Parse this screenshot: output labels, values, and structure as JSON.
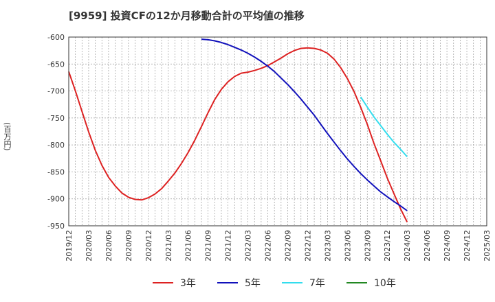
{
  "chart_data": {
    "type": "line",
    "title": "[9959]  投資CFの12か月移動合計の平均値の推移",
    "ylabel": "(百万円)",
    "xlabel": "",
    "ylim": [
      -950,
      -600
    ],
    "yticks": [
      -600,
      -650,
      -700,
      -750,
      -800,
      -850,
      -900,
      -950
    ],
    "x_tick_labels": [
      "2019/12",
      "2020/03",
      "2020/06",
      "2020/09",
      "2020/12",
      "2021/03",
      "2021/06",
      "2021/09",
      "2021/12",
      "2022/03",
      "2022/06",
      "2022/09",
      "2022/12",
      "2023/03",
      "2023/06",
      "2023/09",
      "2023/12",
      "2024/03",
      "2024/06",
      "2024/09",
      "2024/12",
      "2025/03"
    ],
    "grid": true,
    "legend_position": "bottom",
    "series": [
      {
        "name": "3年",
        "color": "#dd2222",
        "x": [
          "2019/12",
          "2020/01",
          "2020/02",
          "2020/03",
          "2020/04",
          "2020/05",
          "2020/06",
          "2020/07",
          "2020/08",
          "2020/09",
          "2020/10",
          "2020/11",
          "2020/12",
          "2021/01",
          "2021/02",
          "2021/03",
          "2021/04",
          "2021/05",
          "2021/06",
          "2021/07",
          "2021/08",
          "2021/09",
          "2021/10",
          "2021/11",
          "2021/12",
          "2022/01",
          "2022/02",
          "2022/03",
          "2022/04",
          "2022/05",
          "2022/06",
          "2022/07",
          "2022/08",
          "2022/09",
          "2022/10",
          "2022/11",
          "2022/12",
          "2023/01",
          "2023/02",
          "2023/03",
          "2023/04",
          "2023/05",
          "2023/06",
          "2023/07",
          "2023/08",
          "2023/09",
          "2023/10",
          "2023/11",
          "2023/12",
          "2024/01",
          "2024/02",
          "2024/03"
        ],
        "values": [
          -664,
          -700,
          -738,
          -776,
          -810,
          -838,
          -860,
          -876,
          -889,
          -897,
          -901,
          -902,
          -898,
          -891,
          -881,
          -867,
          -852,
          -834,
          -814,
          -791,
          -766,
          -740,
          -716,
          -697,
          -683,
          -673,
          -667,
          -665,
          -662,
          -658,
          -653,
          -646,
          -639,
          -631,
          -625,
          -621,
          -620,
          -621,
          -624,
          -630,
          -641,
          -657,
          -677,
          -701,
          -730,
          -762,
          -797,
          -829,
          -861,
          -890,
          -918,
          -943
        ]
      },
      {
        "name": "5年",
        "color": "#1111bb",
        "x": [
          "2021/08",
          "2021/09",
          "2021/10",
          "2021/11",
          "2021/12",
          "2022/01",
          "2022/02",
          "2022/03",
          "2022/04",
          "2022/05",
          "2022/06",
          "2022/07",
          "2022/08",
          "2022/09",
          "2022/10",
          "2022/11",
          "2022/12",
          "2023/01",
          "2023/02",
          "2023/03",
          "2023/04",
          "2023/05",
          "2023/06",
          "2023/07",
          "2023/08",
          "2023/09",
          "2023/10",
          "2023/11",
          "2023/12",
          "2024/01",
          "2024/02",
          "2024/03"
        ],
        "values": [
          -604,
          -605,
          -607,
          -610,
          -614,
          -619,
          -624,
          -630,
          -637,
          -645,
          -654,
          -664,
          -676,
          -688,
          -701,
          -715,
          -730,
          -745,
          -762,
          -779,
          -795,
          -811,
          -826,
          -840,
          -853,
          -865,
          -876,
          -887,
          -896,
          -905,
          -913,
          -922
        ]
      },
      {
        "name": "7年",
        "color": "#33ddee",
        "x": [
          "2023/08",
          "2023/09",
          "2023/10",
          "2023/11",
          "2023/12",
          "2024/01",
          "2024/02",
          "2024/03"
        ],
        "values": [
          -711,
          -730,
          -748,
          -764,
          -780,
          -795,
          -808,
          -822
        ]
      },
      {
        "name": "10年",
        "color": "#228822",
        "x": [],
        "values": []
      }
    ]
  }
}
